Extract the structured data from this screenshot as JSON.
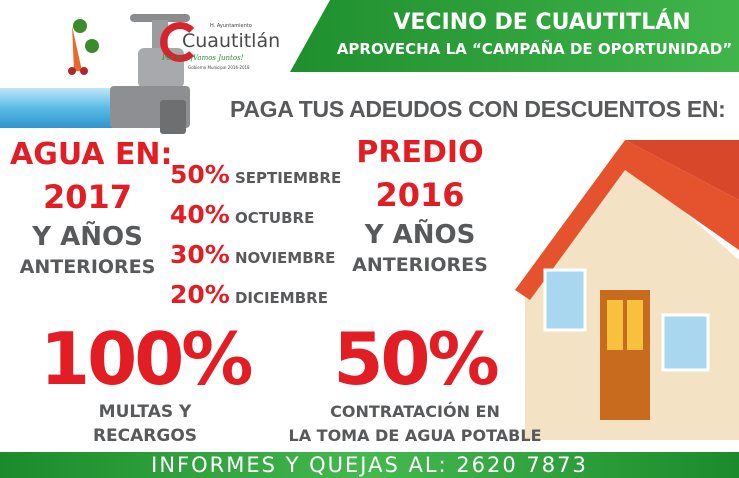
{
  "logo": {
    "subtitle": "H. Ayuntamiento",
    "name": "Cuautitlán",
    "slogan": "Por ti....¡Vamos Juntos!",
    "term": "Gobierno Municipal 2016-2018"
  },
  "banner": {
    "title": "VECINO DE CUAUTITLÁN",
    "subtitle": "APROVECHA LA “CAMPAÑA DE OPORTUNIDAD”"
  },
  "headline": "PAGA TUS ADEUDOS CON DESCUENTOS EN:",
  "agua": {
    "label": "AGUA EN:",
    "year": "2017",
    "line1": "Y AÑOS",
    "line2": "ANTERIORES"
  },
  "discounts": [
    {
      "pct": "50%",
      "month": "SEPTIEMBRE"
    },
    {
      "pct": "40%",
      "month": "OCTUBRE"
    },
    {
      "pct": "30%",
      "month": "NOVIEMBRE"
    },
    {
      "pct": "20%",
      "month": "DICIEMBRE"
    }
  ],
  "predio": {
    "label": "PREDIO",
    "year": "2016",
    "line1": "Y AÑOS",
    "line2": "ANTERIORES"
  },
  "promo1": {
    "pct": "100%",
    "line1": "MULTAS Y",
    "line2": "RECARGOS"
  },
  "promo2": {
    "pct": "50%",
    "line1": "CONTRATACIÓN EN",
    "line2": "LA TOMA DE AGUA POTABLE"
  },
  "footer": "INFORMES Y QUEJAS AL: 2620 7873",
  "colors": {
    "red": "#e21d24",
    "green": "#2fa33c",
    "gray": "#58595b"
  }
}
